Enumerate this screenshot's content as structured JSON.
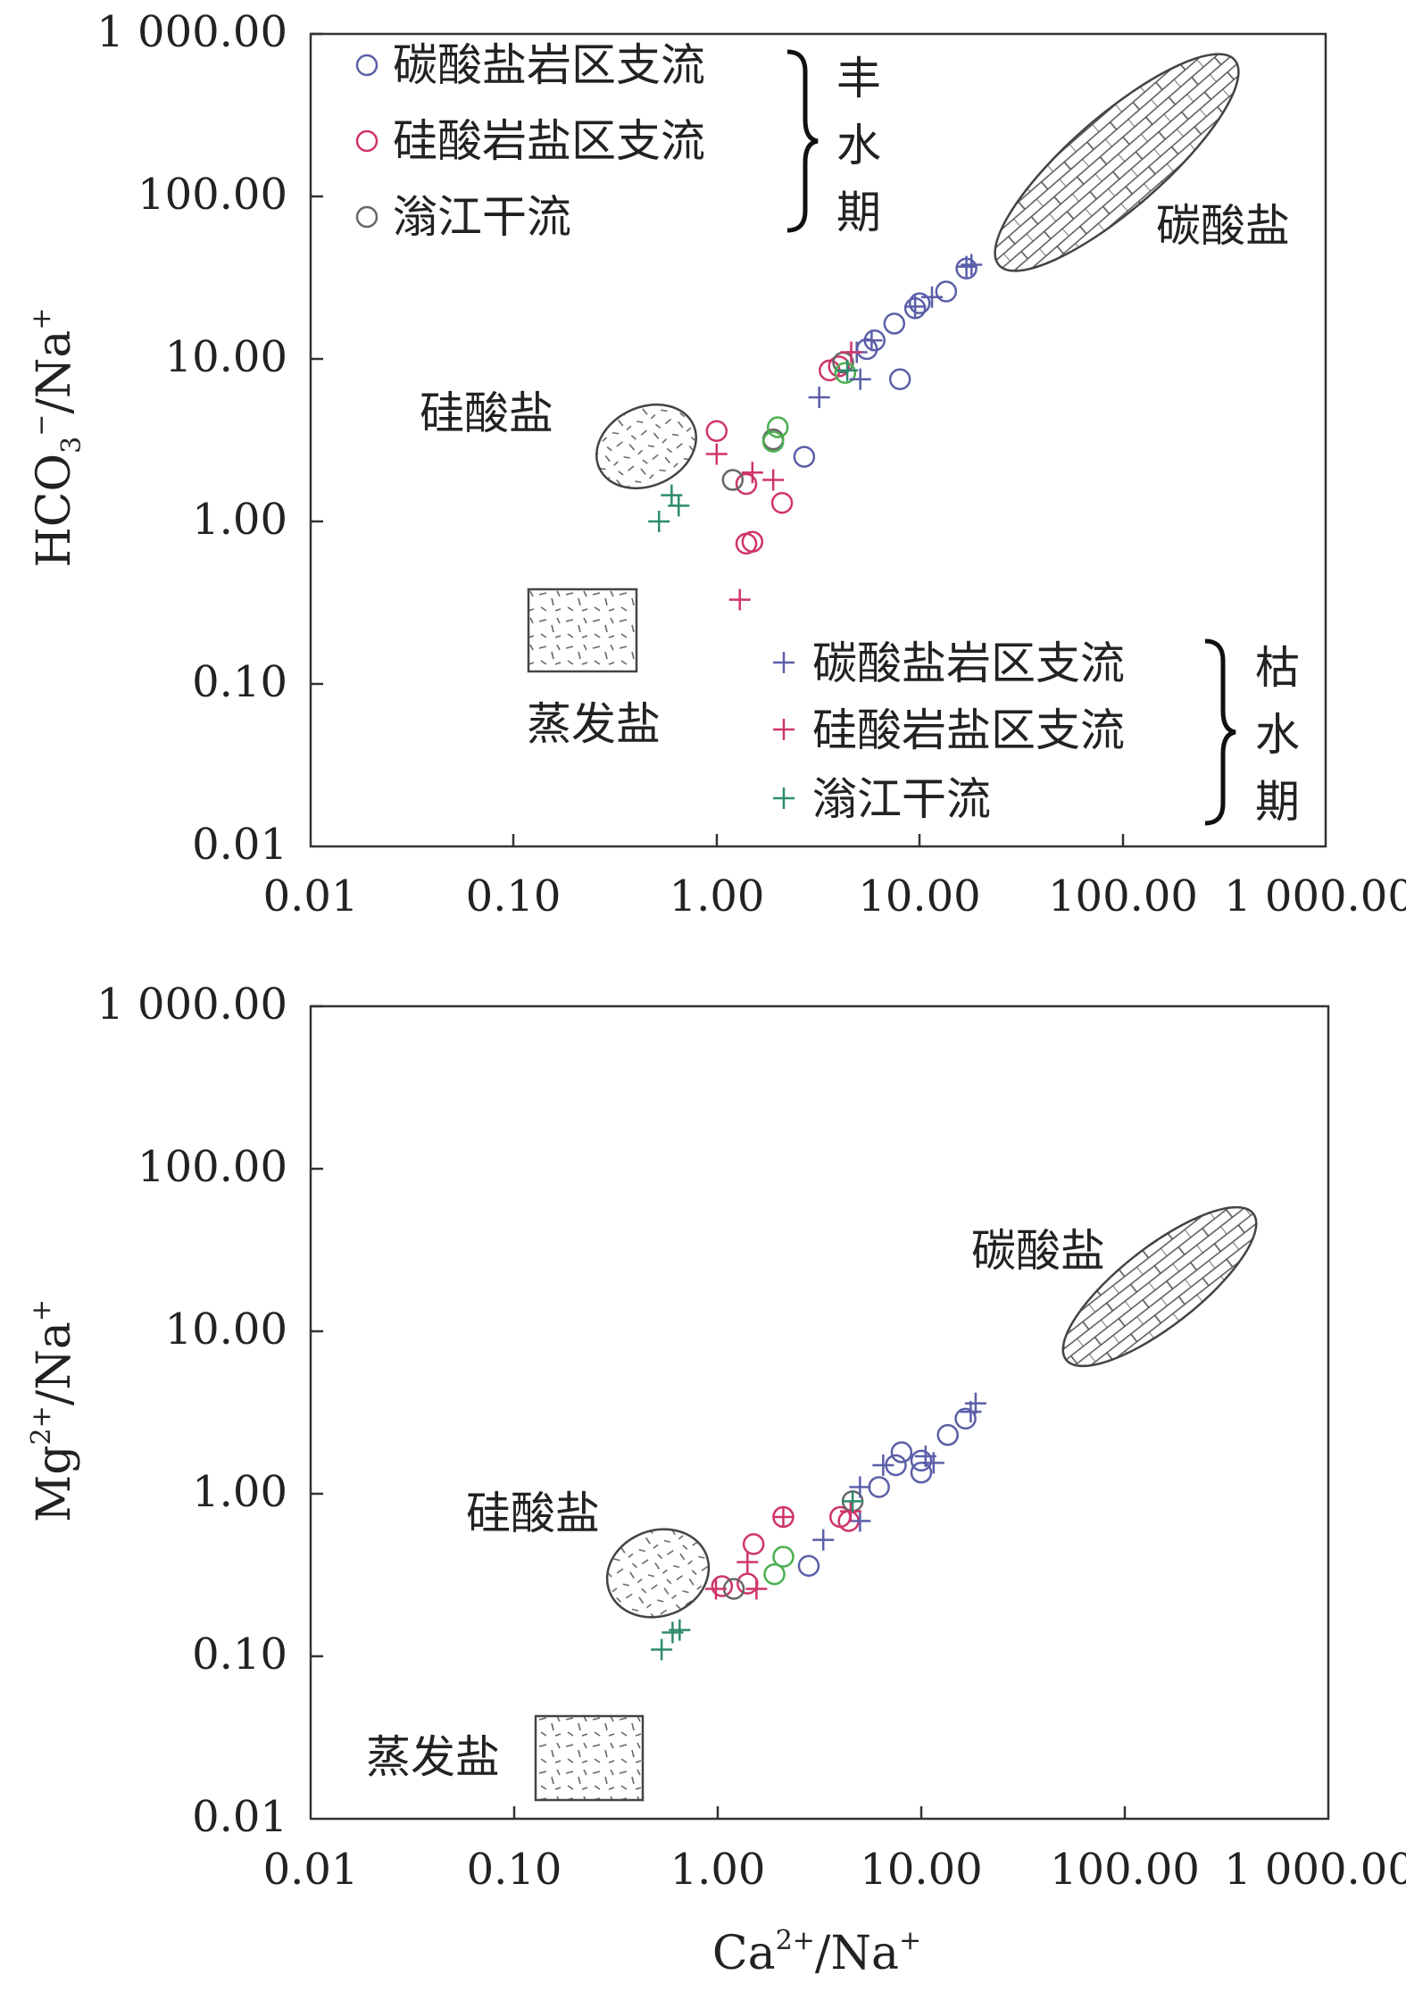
{
  "chart_data": [
    {
      "type": "scatter",
      "scale": "log",
      "x": {
        "label": "Ca2+/Na+",
        "ticks": [
          0.01,
          0.1,
          1,
          10,
          100,
          1000
        ],
        "tick_labels": [
          "0.01",
          "0.10",
          "1.00",
          "10.00",
          "100.00",
          "1 000.00"
        ],
        "range": [
          0.01,
          1000
        ]
      },
      "y": {
        "label_base": "HCO",
        "label_sub": "3",
        "label_sup": "−",
        "label_rest": "/Na",
        "label_sup2": "+",
        "ticks": [
          0.01,
          0.1,
          1,
          10,
          100,
          1000
        ],
        "tick_labels": [
          "0.01",
          "0.10",
          "1.00",
          "10.00",
          "100.00",
          "1 000.00"
        ],
        "range": [
          0.01,
          1000
        ]
      },
      "zones": {
        "carbonate": "碳酸盐",
        "silicate": "硅酸盐",
        "evaporite": "蒸发盐"
      },
      "legend_wet": {
        "items": [
          "碳酸盐岩区支流",
          "硅酸岩盐区支流",
          "滃江干流"
        ],
        "period": [
          "丰",
          "水",
          "期"
        ]
      },
      "legend_dry": {
        "items": [
          "碳酸盐岩区支流",
          "硅酸岩盐区支流",
          "滃江干流"
        ],
        "period": [
          "枯",
          "水",
          "期"
        ]
      },
      "series": [
        {
          "name": "碳酸盐岩区支流",
          "period": "丰水期",
          "marker": "circle",
          "color": "#5b5fa8",
          "points": [
            [
              2.7,
              2.5
            ],
            [
              5.5,
              11.5
            ],
            [
              6.0,
              13.0
            ],
            [
              7.5,
              16.5
            ],
            [
              9.5,
              20.5
            ],
            [
              10.0,
              22.0
            ],
            [
              13.5,
              26.0
            ],
            [
              17.0,
              36.0
            ],
            [
              8.0,
              7.5
            ]
          ]
        },
        {
          "name": "硅酸岩盐区支流",
          "period": "丰水期",
          "marker": "circle",
          "color": "#d0336c",
          "points": [
            [
              1.0,
              3.6
            ],
            [
              1.4,
              1.7
            ],
            [
              1.4,
              0.73
            ],
            [
              1.5,
              0.75
            ],
            [
              2.1,
              1.3
            ],
            [
              3.6,
              8.5
            ],
            [
              4.0,
              9.0
            ]
          ]
        },
        {
          "name": "滃江干流",
          "period": "丰水期",
          "marker": "circle",
          "color": "#666666",
          "points": [
            [
              1.2,
              1.8
            ],
            [
              1.9,
              3.2
            ],
            [
              4.2,
              9.5
            ]
          ]
        },
        {
          "name": "滃江干流",
          "period": "丰水期",
          "marker": "circle",
          "color": "#4caf50",
          "points": [
            [
              2.0,
              3.8
            ],
            [
              1.9,
              3.1
            ],
            [
              4.3,
              8.2
            ]
          ]
        },
        {
          "name": "碳酸盐岩区支流",
          "period": "枯水期",
          "marker": "plus",
          "color": "#5b5fa8",
          "points": [
            [
              3.2,
              5.8
            ],
            [
              4.9,
              11.0
            ],
            [
              5.8,
              13.0
            ],
            [
              9.5,
              21.0
            ],
            [
              11.5,
              24.0
            ],
            [
              17.0,
              37.0
            ],
            [
              18.0,
              38.0
            ],
            [
              5.1,
              7.5
            ]
          ]
        },
        {
          "name": "硅酸岩盐区支流",
          "period": "枯水期",
          "marker": "plus",
          "color": "#d0336c",
          "points": [
            [
              1.0,
              2.6
            ],
            [
              1.5,
              2.0
            ],
            [
              1.9,
              1.8
            ],
            [
              1.3,
              0.33
            ],
            [
              4.6,
              11.0
            ]
          ]
        },
        {
          "name": "滃江干流",
          "period": "枯水期",
          "marker": "plus",
          "color": "#2e8b6e",
          "points": [
            [
              0.52,
              1.0
            ],
            [
              0.6,
              1.45
            ],
            [
              0.65,
              1.25
            ],
            [
              4.4,
              8.5
            ]
          ]
        }
      ]
    },
    {
      "type": "scatter",
      "scale": "log",
      "x": {
        "label_base": "Ca",
        "label_sup": "2+",
        "label_rest": "/Na",
        "label_sup2": "+",
        "ticks": [
          0.01,
          0.1,
          1,
          10,
          100,
          1000
        ],
        "tick_labels": [
          "0.01",
          "0.10",
          "1.00",
          "10.00",
          "100.00",
          "1 000.00"
        ],
        "range": [
          0.01,
          1000
        ]
      },
      "y": {
        "label_base": "Mg",
        "label_sup": "2+",
        "label_rest": "/Na",
        "label_sup2": "+",
        "ticks": [
          0.01,
          0.1,
          1,
          10,
          100,
          1000
        ],
        "tick_labels": [
          "0.01",
          "0.10",
          "1.00",
          "10.00",
          "100.00",
          "1 000.00"
        ],
        "range": [
          0.01,
          1000
        ]
      },
      "zones": {
        "carbonate": "碳酸盐",
        "silicate": "硅酸盐",
        "evaporite": "蒸发盐"
      },
      "series": [
        {
          "name": "碳酸盐岩区支流",
          "period": "丰水期",
          "marker": "circle",
          "color": "#5b5fa8",
          "points": [
            [
              2.8,
              0.36
            ],
            [
              6.2,
              1.1
            ],
            [
              7.5,
              1.5
            ],
            [
              8.0,
              1.8
            ],
            [
              10.0,
              1.6
            ],
            [
              10.0,
              1.35
            ],
            [
              13.5,
              2.3
            ],
            [
              16.5,
              2.9
            ]
          ]
        },
        {
          "name": "硅酸岩盐区支流",
          "period": "丰水期",
          "marker": "circle",
          "color": "#d0336c",
          "points": [
            [
              1.05,
              0.27
            ],
            [
              1.4,
              0.28
            ],
            [
              1.5,
              0.49
            ],
            [
              2.1,
              0.72
            ],
            [
              4.0,
              0.72
            ],
            [
              4.4,
              0.68
            ]
          ]
        },
        {
          "name": "滃江干流",
          "period": "丰水期",
          "marker": "circle",
          "color": "#666666",
          "points": [
            [
              1.2,
              0.26
            ],
            [
              4.6,
              0.9
            ]
          ]
        },
        {
          "name": "滃江干流",
          "period": "丰水期",
          "marker": "circle",
          "color": "#4caf50",
          "points": [
            [
              1.9,
              0.32
            ],
            [
              2.1,
              0.41
            ]
          ]
        },
        {
          "name": "碳酸盐岩区支流",
          "period": "枯水期",
          "marker": "plus",
          "color": "#5b5fa8",
          "points": [
            [
              3.3,
              0.52
            ],
            [
              5.0,
              1.1
            ],
            [
              6.5,
              1.5
            ],
            [
              10.5,
              1.7
            ],
            [
              11.5,
              1.55
            ],
            [
              17.5,
              3.2
            ],
            [
              18.5,
              3.6
            ],
            [
              5.0,
              0.68
            ]
          ]
        },
        {
          "name": "硅酸岩盐区支流",
          "period": "枯水期",
          "marker": "plus",
          "color": "#d0336c",
          "points": [
            [
              0.98,
              0.26
            ],
            [
              1.4,
              0.38
            ],
            [
              1.55,
              0.26
            ],
            [
              2.1,
              0.72
            ],
            [
              4.5,
              0.78
            ]
          ]
        },
        {
          "name": "滃江干流",
          "period": "枯水期",
          "marker": "plus",
          "color": "#2e8b6e",
          "points": [
            [
              0.53,
              0.11
            ],
            [
              0.6,
              0.14
            ],
            [
              0.65,
              0.145
            ],
            [
              4.6,
              0.9
            ]
          ]
        }
      ]
    }
  ]
}
